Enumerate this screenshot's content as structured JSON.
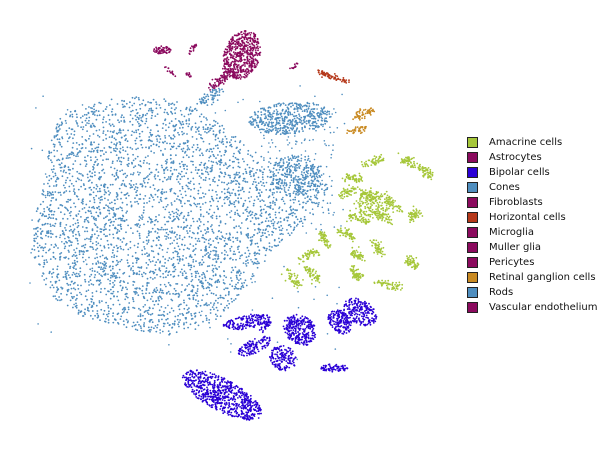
{
  "chart_data": {
    "type": "scatter",
    "title": "",
    "xlabel": "",
    "ylabel": "",
    "axes": "hidden",
    "grid": false,
    "legend_position": "right",
    "series": [
      {
        "name": "Amacrine cells",
        "color": "#a6c73a"
      },
      {
        "name": "Astrocytes",
        "color": "#8b0a5e"
      },
      {
        "name": "Bipolar cells",
        "color": "#2a00d6"
      },
      {
        "name": "Cones",
        "color": "#4f8ebf"
      },
      {
        "name": "Fibroblasts",
        "color": "#8b0a5e"
      },
      {
        "name": "Horizontal cells",
        "color": "#b5381a"
      },
      {
        "name": "Microglia",
        "color": "#8b0a5e"
      },
      {
        "name": "Muller glia",
        "color": "#8b0a5e"
      },
      {
        "name": "Pericytes",
        "color": "#8b0a5e"
      },
      {
        "name": "Retinal ganglion cells",
        "color": "#c98a22"
      },
      {
        "name": "Rods",
        "color": "#4f8ebf"
      },
      {
        "name": "Vascular endothelium",
        "color": "#8b0a5e"
      }
    ]
  }
}
